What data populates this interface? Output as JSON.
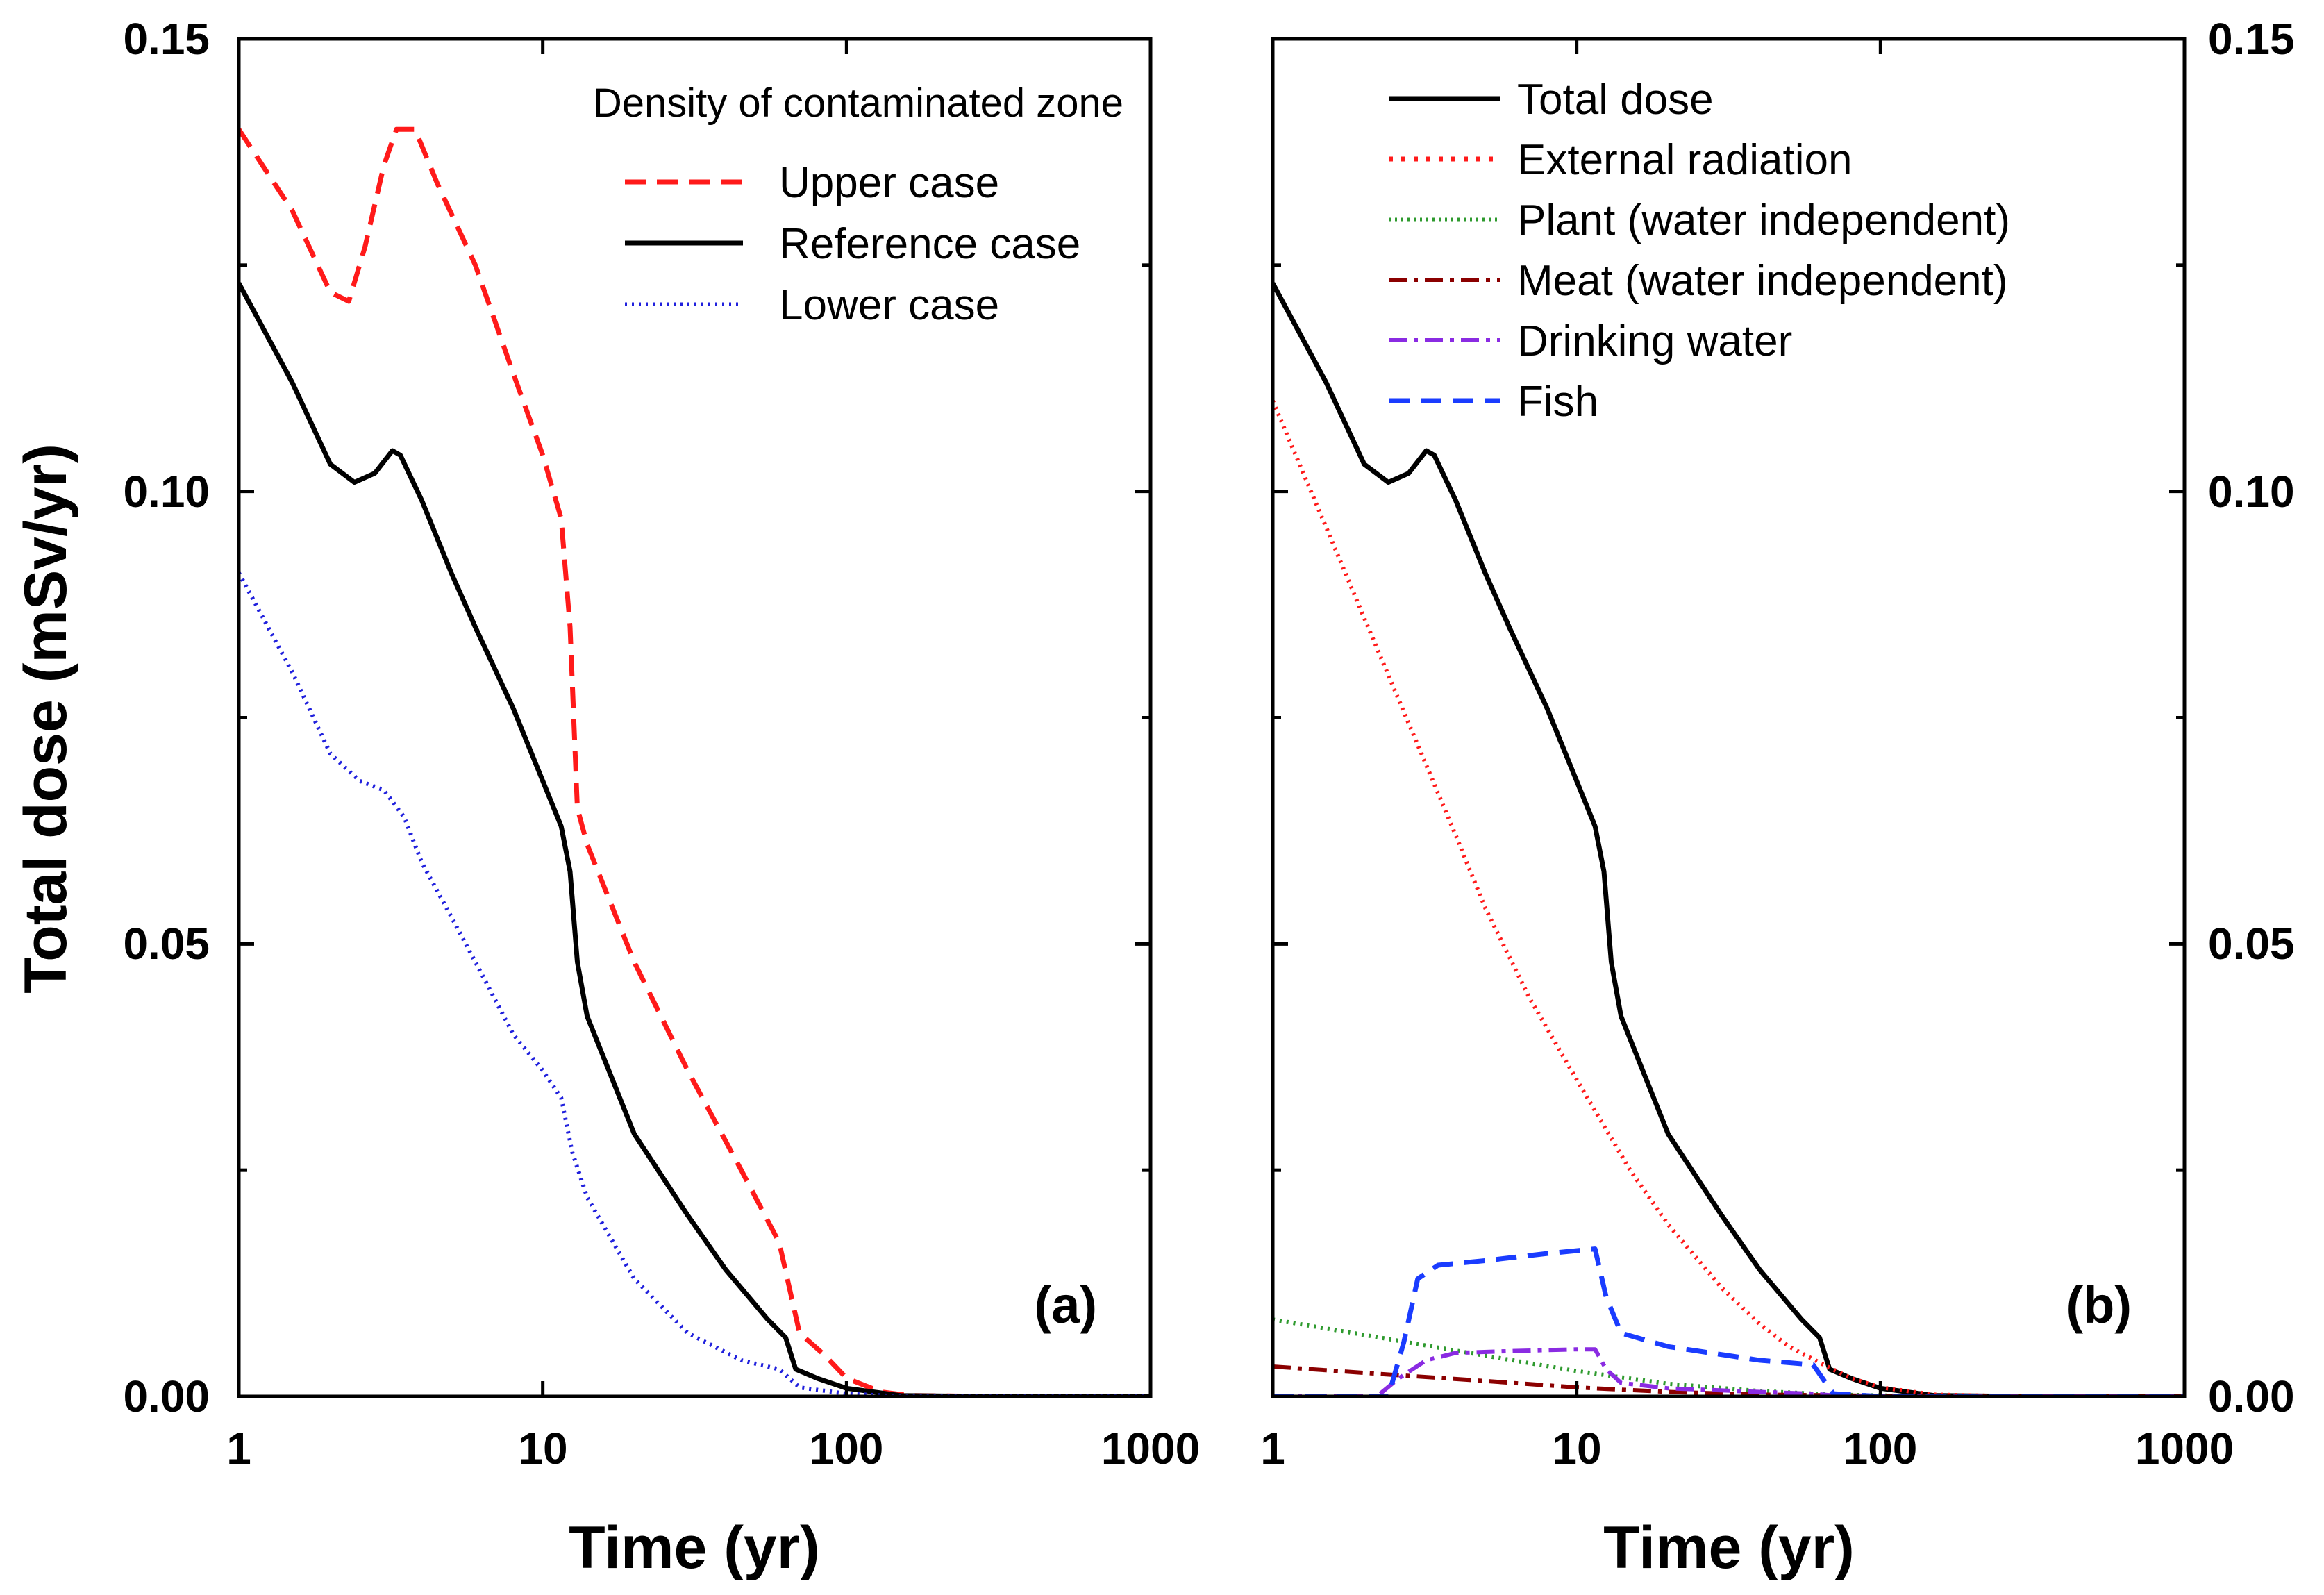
{
  "chart_data": [
    {
      "panel_label": "(a)",
      "type": "line",
      "xscale": "log",
      "xlim": [
        1,
        1000
      ],
      "ylim": [
        0,
        0.15
      ],
      "xticks": [
        "1",
        "10",
        "100",
        "1000"
      ],
      "yticks": [
        "0.00",
        "0.05",
        "0.10",
        "0.15"
      ],
      "xlabel": "Time (yr)",
      "ylabel": "Total dose (mSv/yr)",
      "legend_title": "Density of contaminated zone",
      "series": [
        {
          "name": "Upper case",
          "color": "#ff1a1a",
          "dash": "dashed",
          "points": [
            [
              1,
              0.14
            ],
            [
              1.5,
              0.131
            ],
            [
              2,
              0.122
            ],
            [
              2.3,
              0.121
            ],
            [
              2.6,
              0.127
            ],
            [
              3,
              0.136
            ],
            [
              3.3,
              0.14
            ],
            [
              3.8,
              0.14
            ],
            [
              4.5,
              0.134
            ],
            [
              6,
              0.125
            ],
            [
              8,
              0.113
            ],
            [
              10,
              0.104
            ],
            [
              11.5,
              0.097
            ],
            [
              12.3,
              0.085
            ],
            [
              13,
              0.065
            ],
            [
              14,
              0.061
            ],
            [
              20,
              0.048
            ],
            [
              30,
              0.036
            ],
            [
              45,
              0.025
            ],
            [
              60,
              0.017
            ],
            [
              70,
              0.007
            ],
            [
              85,
              0.0045
            ],
            [
              100,
              0.002
            ],
            [
              130,
              0.0005
            ],
            [
              160,
              0.0001
            ],
            [
              300,
              0
            ],
            [
              1000,
              0
            ]
          ]
        },
        {
          "name": "Reference case",
          "color": "#000000",
          "dash": "solid",
          "points": [
            [
              1,
              0.123
            ],
            [
              1.5,
              0.112
            ],
            [
              2,
              0.103
            ],
            [
              2.4,
              0.101
            ],
            [
              2.8,
              0.102
            ],
            [
              3.2,
              0.1045
            ],
            [
              3.4,
              0.104
            ],
            [
              4,
              0.099
            ],
            [
              5,
              0.091
            ],
            [
              6,
              0.085
            ],
            [
              8,
              0.076
            ],
            [
              10,
              0.068
            ],
            [
              11.5,
              0.063
            ],
            [
              12.3,
              0.058
            ],
            [
              13,
              0.048
            ],
            [
              14,
              0.042
            ],
            [
              20,
              0.029
            ],
            [
              30,
              0.02
            ],
            [
              40,
              0.014
            ],
            [
              55,
              0.0085
            ],
            [
              63,
              0.0065
            ],
            [
              68,
              0.003
            ],
            [
              80,
              0.002
            ],
            [
              100,
              0.0009
            ],
            [
              150,
              0.0001
            ],
            [
              300,
              0
            ],
            [
              1000,
              0
            ]
          ]
        },
        {
          "name": "Lower case",
          "color": "#2020dd",
          "dash": "dotted",
          "points": [
            [
              1,
              0.091
            ],
            [
              1.5,
              0.08
            ],
            [
              2,
              0.071
            ],
            [
              2.5,
              0.068
            ],
            [
              3,
              0.067
            ],
            [
              3.5,
              0.064
            ],
            [
              4,
              0.059
            ],
            [
              5,
              0.053
            ],
            [
              6,
              0.048
            ],
            [
              8,
              0.04
            ],
            [
              10,
              0.036
            ],
            [
              11.5,
              0.033
            ],
            [
              12.5,
              0.027
            ],
            [
              14,
              0.022
            ],
            [
              20,
              0.013
            ],
            [
              30,
              0.007
            ],
            [
              45,
              0.004
            ],
            [
              60,
              0.003
            ],
            [
              70,
              0.001
            ],
            [
              100,
              0.0003
            ],
            [
              150,
              0
            ],
            [
              1000,
              0
            ]
          ]
        }
      ]
    },
    {
      "panel_label": "(b)",
      "type": "line",
      "xscale": "log",
      "xlim": [
        1,
        1000
      ],
      "ylim": [
        0,
        0.15
      ],
      "xticks": [
        "1",
        "10",
        "100",
        "1000"
      ],
      "yticks": [
        "0.00",
        "0.05",
        "0.10",
        "0.15"
      ],
      "xlabel": "Time (yr)",
      "ylabel": "",
      "series": [
        {
          "name": "Total dose",
          "color": "#000000",
          "dash": "solid",
          "points": [
            [
              1,
              0.123
            ],
            [
              1.5,
              0.112
            ],
            [
              2,
              0.103
            ],
            [
              2.4,
              0.101
            ],
            [
              2.8,
              0.102
            ],
            [
              3.2,
              0.1045
            ],
            [
              3.4,
              0.104
            ],
            [
              4,
              0.099
            ],
            [
              5,
              0.091
            ],
            [
              6,
              0.085
            ],
            [
              8,
              0.076
            ],
            [
              10,
              0.068
            ],
            [
              11.5,
              0.063
            ],
            [
              12.3,
              0.058
            ],
            [
              13,
              0.048
            ],
            [
              14,
              0.042
            ],
            [
              20,
              0.029
            ],
            [
              30,
              0.02
            ],
            [
              40,
              0.014
            ],
            [
              55,
              0.0085
            ],
            [
              63,
              0.0065
            ],
            [
              68,
              0.003
            ],
            [
              80,
              0.002
            ],
            [
              100,
              0.0009
            ],
            [
              150,
              0.0001
            ],
            [
              300,
              0
            ],
            [
              1000,
              0
            ]
          ]
        },
        {
          "name": "External radiation",
          "color": "#ff1a1a",
          "dash": "dotted",
          "points": [
            [
              1,
              0.11
            ],
            [
              1.5,
              0.096
            ],
            [
              2,
              0.086
            ],
            [
              3,
              0.072
            ],
            [
              4,
              0.062
            ],
            [
              5,
              0.054
            ],
            [
              7,
              0.044
            ],
            [
              10,
              0.035
            ],
            [
              15,
              0.025
            ],
            [
              20,
              0.019
            ],
            [
              30,
              0.012
            ],
            [
              40,
              0.008
            ],
            [
              50,
              0.0055
            ],
            [
              65,
              0.0035
            ],
            [
              80,
              0.002
            ],
            [
              100,
              0.001
            ],
            [
              150,
              0.0002
            ],
            [
              300,
              0
            ],
            [
              1000,
              0
            ]
          ]
        },
        {
          "name": "Plant (water independent)",
          "color": "#2e9a2e",
          "dash": "dotted",
          "points": [
            [
              1,
              0.0085
            ],
            [
              2,
              0.0068
            ],
            [
              5,
              0.0045
            ],
            [
              10,
              0.0028
            ],
            [
              20,
              0.0014
            ],
            [
              40,
              0.0006
            ],
            [
              70,
              0.0002
            ],
            [
              150,
              0
            ],
            [
              1000,
              0
            ]
          ]
        },
        {
          "name": "Meat (water independent)",
          "color": "#8b0000",
          "dash": "dashdot",
          "points": [
            [
              1,
              0.0033
            ],
            [
              2,
              0.0026
            ],
            [
              5,
              0.0017
            ],
            [
              10,
              0.001
            ],
            [
              20,
              0.0005
            ],
            [
              40,
              0.0002
            ],
            [
              80,
              0.0001
            ],
            [
              150,
              0
            ],
            [
              1000,
              0
            ]
          ]
        },
        {
          "name": "Drinking water",
          "color": "#8a2be2",
          "dash": "dashdot",
          "points": [
            [
              1,
              0
            ],
            [
              2.2,
              0
            ],
            [
              2.6,
              0.002
            ],
            [
              3.2,
              0.004
            ],
            [
              4,
              0.0048
            ],
            [
              6,
              0.005
            ],
            [
              10,
              0.0052
            ],
            [
              11.5,
              0.0052
            ],
            [
              12.5,
              0.003
            ],
            [
              14,
              0.0015
            ],
            [
              20,
              0.0009
            ],
            [
              40,
              0.0005
            ],
            [
              60,
              0.0003
            ],
            [
              70,
              0.0001
            ],
            [
              100,
              0
            ],
            [
              1000,
              0
            ]
          ]
        },
        {
          "name": "Fish",
          "color": "#1a3cff",
          "dash": "dashed",
          "points": [
            [
              1,
              0
            ],
            [
              2.4,
              0
            ],
            [
              2.7,
              0.006
            ],
            [
              3,
              0.013
            ],
            [
              3.5,
              0.0145
            ],
            [
              5,
              0.015
            ],
            [
              8,
              0.0158
            ],
            [
              11.5,
              0.0163
            ],
            [
              12.5,
              0.011
            ],
            [
              14,
              0.007
            ],
            [
              20,
              0.0055
            ],
            [
              40,
              0.004
            ],
            [
              60,
              0.0035
            ],
            [
              66,
              0.0015
            ],
            [
              70,
              0.0003
            ],
            [
              100,
              0
            ],
            [
              1000,
              0
            ]
          ]
        }
      ]
    }
  ]
}
